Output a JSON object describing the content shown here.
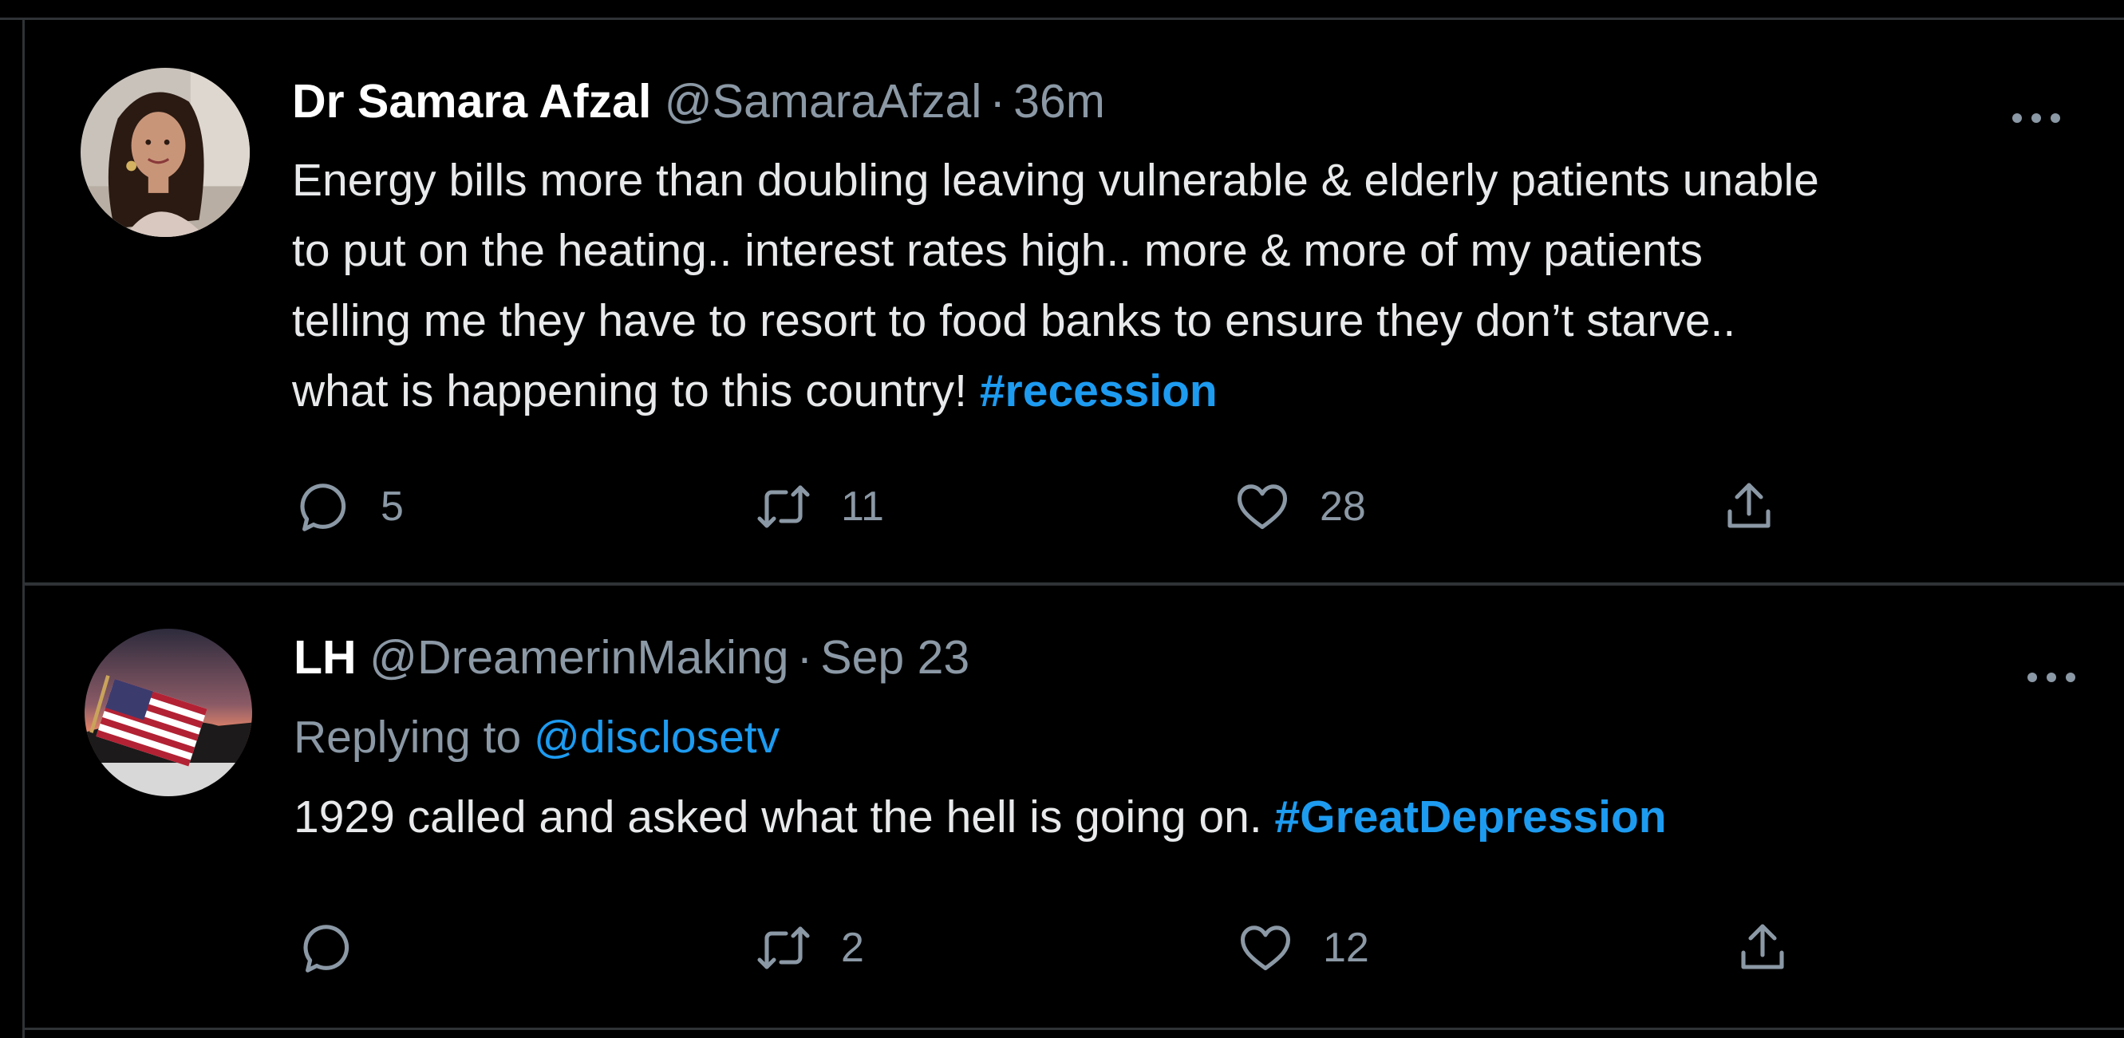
{
  "tweets": [
    {
      "author": {
        "name": "Dr Samara Afzal",
        "handle": "@SamaraAfzal",
        "separator": "·",
        "time": "36m"
      },
      "text_lines": [
        "Energy bills more than doubling leaving vulnerable & elderly patients unable",
        "to put on the heating.. interest rates high.. more & more of my patients",
        "telling me they have to resort to food banks to ensure they don’t starve..",
        "what is happening to this country! "
      ],
      "hashtag": "#recession",
      "actions": {
        "reply_count": "5",
        "retweet_count": "11",
        "like_count": "28"
      },
      "colors": {
        "avatar_bg": "#c9c2bb",
        "skin": "#c99579",
        "hair": "#2a1a12"
      }
    },
    {
      "author": {
        "name": "LH",
        "handle": "@DreamerinMaking",
        "separator": "·",
        "time": "Sep 23"
      },
      "reply_prefix": "Replying to ",
      "reply_to": "@disclosetv",
      "text": "1929 called and asked what the hell is going on. ",
      "hashtag": "#GreatDepression",
      "actions": {
        "reply_count": "",
        "retweet_count": "2",
        "like_count": "12"
      },
      "colors": {
        "sky_top": "#2d2b3c",
        "sky_glow": "#e8876a",
        "flag_red": "#b22234",
        "flag_blue": "#3c3b6e"
      }
    }
  ],
  "theme": {
    "background": "#000000",
    "divider": "#2f3336",
    "accent": "#1d9bf0",
    "secondary_text": "#8b98a5",
    "primary_text": "#e7e9ea"
  }
}
